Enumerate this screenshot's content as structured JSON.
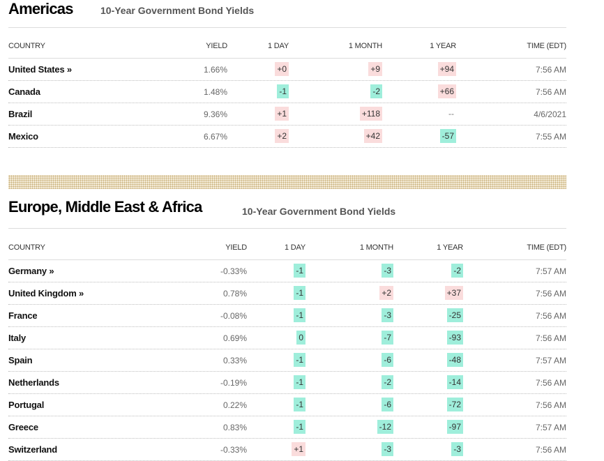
{
  "americas": {
    "title": "Americas",
    "subtitle": "10-Year Government Bond Yields",
    "headers": [
      "COUNTRY",
      "YIELD",
      "1 DAY",
      "1 MONTH",
      "1 YEAR",
      "TIME (EDT)"
    ],
    "rows": [
      {
        "country": "United States »",
        "yield": "1.66%",
        "day": "+0",
        "month": "+9",
        "year": "+94",
        "time": "7:56 AM",
        "day_s": "pos",
        "month_s": "pos",
        "year_s": "pos"
      },
      {
        "country": "Canada",
        "yield": "1.48%",
        "day": "-1",
        "month": "-2",
        "year": "+66",
        "time": "7:56 AM",
        "day_s": "neg",
        "month_s": "neg",
        "year_s": "pos"
      },
      {
        "country": "Brazil",
        "yield": "9.36%",
        "day": "+1",
        "month": "+118",
        "year": "--",
        "time": "4/6/2021",
        "day_s": "pos",
        "month_s": "pos",
        "year_s": "plain"
      },
      {
        "country": "Mexico",
        "yield": "6.67%",
        "day": "+2",
        "month": "+42",
        "year": "-57",
        "time": "7:55 AM",
        "day_s": "pos",
        "month_s": "pos",
        "year_s": "neg"
      }
    ]
  },
  "emea": {
    "title": "Europe, Middle East & Africa",
    "subtitle": "10-Year Government Bond Yields",
    "headers": [
      "COUNTRY",
      "YIELD",
      "1 DAY",
      "1 MONTH",
      "1 YEAR",
      "TIME (EDT)"
    ],
    "rows": [
      {
        "country": "Germany »",
        "yield": "-0.33%",
        "day": "-1",
        "month": "-3",
        "year": "-2",
        "time": "7:57 AM",
        "day_s": "neg",
        "month_s": "neg",
        "year_s": "neg"
      },
      {
        "country": "United Kingdom »",
        "yield": "0.78%",
        "day": "-1",
        "month": "+2",
        "year": "+37",
        "time": "7:56 AM",
        "day_s": "neg",
        "month_s": "pos",
        "year_s": "pos"
      },
      {
        "country": "France",
        "yield": "-0.08%",
        "day": "-1",
        "month": "-3",
        "year": "-25",
        "time": "7:56 AM",
        "day_s": "neg",
        "month_s": "neg",
        "year_s": "neg"
      },
      {
        "country": "Italy",
        "yield": "0.69%",
        "day": "0",
        "month": "-7",
        "year": "-93",
        "time": "7:56 AM",
        "day_s": "neu",
        "month_s": "neg",
        "year_s": "neg"
      },
      {
        "country": "Spain",
        "yield": "0.33%",
        "day": "-1",
        "month": "-6",
        "year": "-48",
        "time": "7:57 AM",
        "day_s": "neg",
        "month_s": "neg",
        "year_s": "neg"
      },
      {
        "country": "Netherlands",
        "yield": "-0.19%",
        "day": "-1",
        "month": "-2",
        "year": "-14",
        "time": "7:56 AM",
        "day_s": "neg",
        "month_s": "neg",
        "year_s": "neg"
      },
      {
        "country": "Portugal",
        "yield": "0.22%",
        "day": "-1",
        "month": "-6",
        "year": "-72",
        "time": "7:56 AM",
        "day_s": "neg",
        "month_s": "neg",
        "year_s": "neg"
      },
      {
        "country": "Greece",
        "yield": "0.83%",
        "day": "-1",
        "month": "-12",
        "year": "-97",
        "time": "7:57 AM",
        "day_s": "neg",
        "month_s": "neg",
        "year_s": "neg"
      },
      {
        "country": "Switzerland",
        "yield": "-0.33%",
        "day": "+1",
        "month": "-3",
        "year": "-3",
        "time": "7:56 AM",
        "day_s": "pos",
        "month_s": "neg",
        "year_s": "neg"
      }
    ]
  },
  "colors": {
    "positive_bg": "#fadcdc",
    "negative_bg": "#9feedb",
    "divider_band": "#f3ead6"
  }
}
